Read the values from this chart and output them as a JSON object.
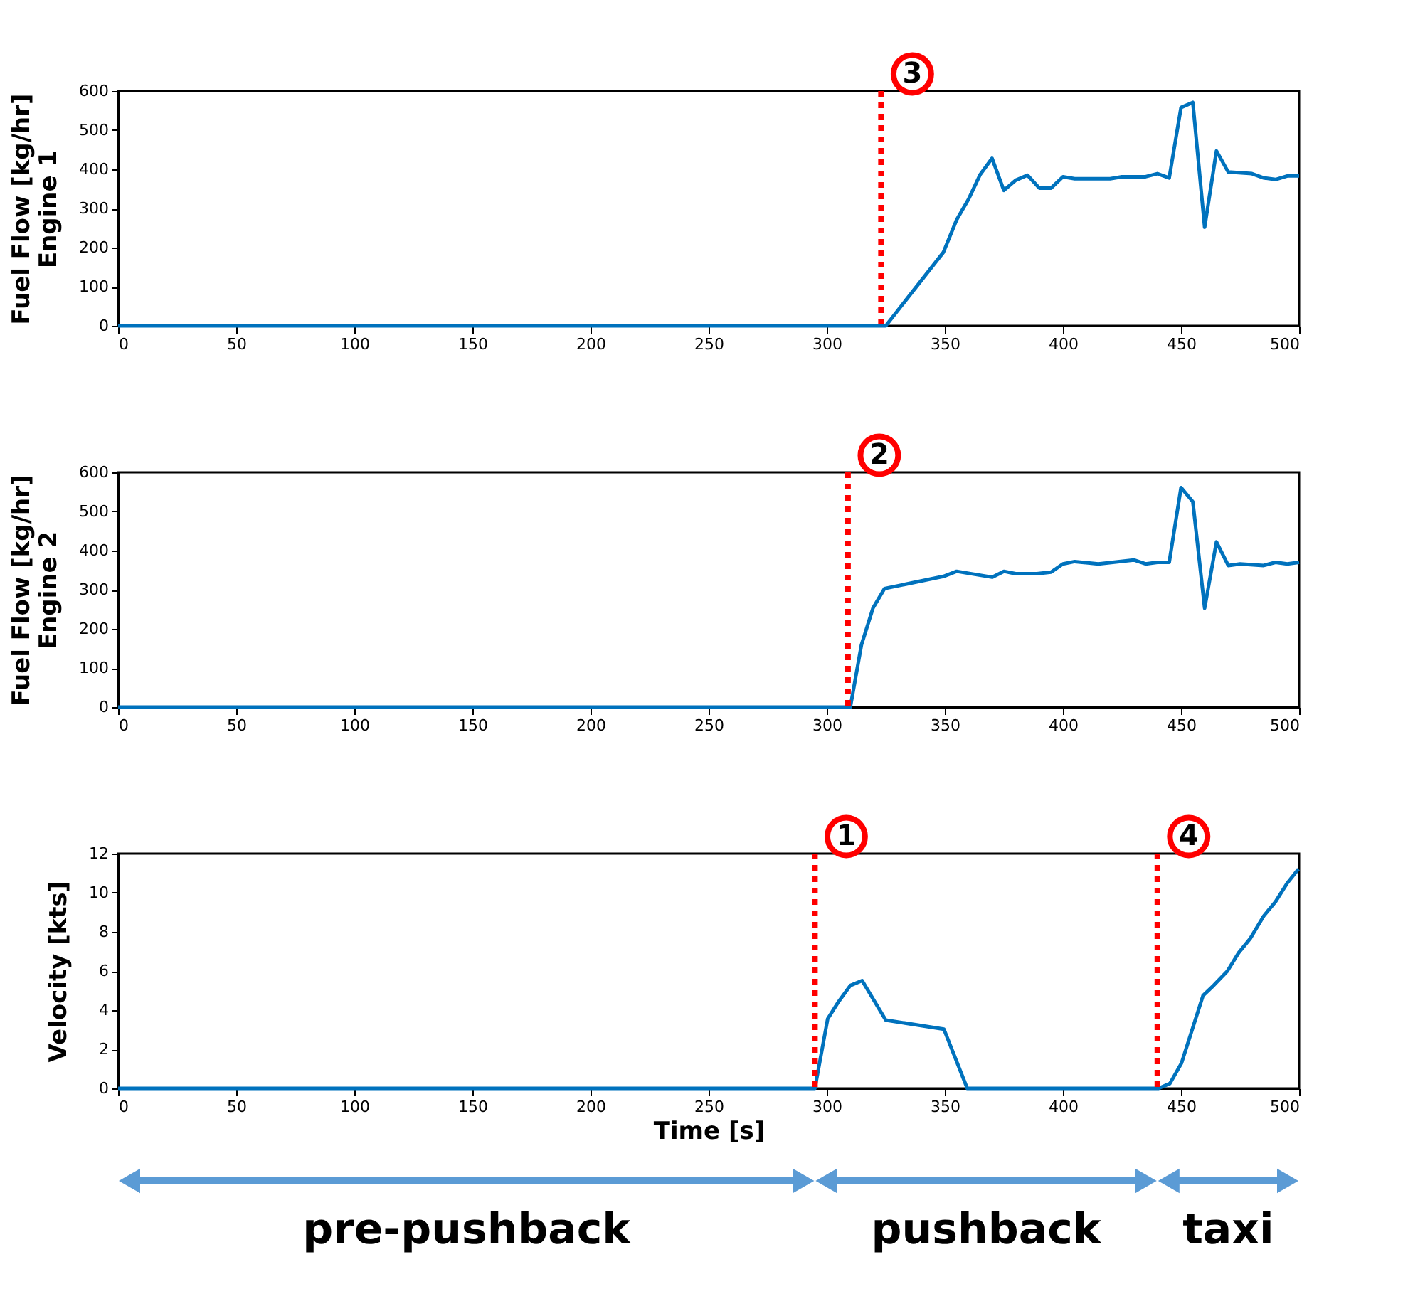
{
  "chart_data": [
    {
      "type": "line",
      "ylabel": "Fuel Flow [kg/hr]\nEngine 1",
      "x": [
        0,
        325,
        349.4,
        355,
        360,
        365,
        370,
        375,
        380,
        385,
        390,
        395,
        400,
        405,
        420,
        425,
        435,
        440,
        445,
        450,
        455,
        460,
        465,
        470,
        480,
        485,
        490,
        495,
        500
      ],
      "series": [
        {
          "color": "#0072bd",
          "values": [
            0,
            0,
            188,
            271,
            323,
            387,
            428,
            346,
            372,
            385,
            352,
            352,
            381,
            376,
            376,
            381,
            381,
            389,
            378,
            558,
            571,
            252,
            447,
            393,
            389,
            378,
            374,
            383,
            383
          ]
        }
      ],
      "xlim": [
        0,
        500
      ],
      "xticks": [
        0,
        50,
        100,
        150,
        200,
        250,
        300,
        350,
        400,
        450,
        500
      ],
      "ylim": [
        0,
        600
      ],
      "yticks": [
        0,
        100,
        200,
        300,
        400,
        500,
        600
      ],
      "ref_lines": [
        {
          "axis": "x",
          "value": 323,
          "color": "#ff0000",
          "line_style": "dotted"
        }
      ],
      "annotations": [
        {
          "text": "3",
          "x": 323,
          "y": 600
        }
      ],
      "marker": "none",
      "line_style": "solid",
      "grid": false
    },
    {
      "type": "line",
      "ylabel": "Fuel Flow [kg/hr]\nEngine 2",
      "x": [
        0,
        310,
        314.7,
        319.6,
        324.5,
        349.4,
        355,
        370,
        375,
        380,
        389,
        395,
        400,
        405,
        415,
        430,
        435,
        440,
        445,
        450,
        455,
        460,
        465,
        470,
        475,
        485,
        490,
        495,
        500
      ],
      "series": [
        {
          "color": "#0072bd",
          "values": [
            0,
            0,
            159,
            253,
            303,
            334,
            347,
            332,
            347,
            341,
            341,
            345,
            366,
            372,
            366,
            376,
            366,
            370,
            370,
            561,
            525,
            253,
            422,
            362,
            366,
            362,
            370,
            366,
            370
          ]
        }
      ],
      "xlim": [
        0,
        500
      ],
      "xticks": [
        0,
        50,
        100,
        150,
        200,
        250,
        300,
        350,
        400,
        450,
        500
      ],
      "ylim": [
        0,
        600
      ],
      "yticks": [
        0,
        100,
        200,
        300,
        400,
        500,
        600
      ],
      "ref_lines": [
        {
          "axis": "x",
          "value": 309,
          "color": "#ff0000",
          "line_style": "dotted"
        }
      ],
      "annotations": [
        {
          "text": "2",
          "x": 309,
          "y": 600
        }
      ],
      "marker": "none",
      "line_style": "solid",
      "grid": false
    },
    {
      "type": "line",
      "xlabel": "Time [s]",
      "ylabel": "Velocity [kts]",
      "x": [
        0,
        295,
        300.4,
        305,
        310,
        315,
        325,
        349.6,
        359.5,
        440.5,
        445.3,
        450.2,
        459.3,
        463.8,
        469.6,
        474.4,
        479.3,
        485,
        490,
        494.9,
        499.7
      ],
      "series": [
        {
          "color": "#0072bd",
          "values": [
            0,
            0,
            3.55,
            4.43,
            5.26,
            5.51,
            3.49,
            3.03,
            0,
            0,
            0.25,
            1.29,
            4.74,
            5.26,
            5.99,
            6.93,
            7.66,
            8.81,
            9.54,
            10.48,
            11.21
          ]
        }
      ],
      "xlim": [
        0,
        500
      ],
      "xticks": [
        0,
        50,
        100,
        150,
        200,
        250,
        300,
        350,
        400,
        450,
        500
      ],
      "ylim": [
        0,
        12
      ],
      "yticks": [
        0,
        2,
        4,
        6,
        8,
        10,
        12
      ],
      "ref_lines": [
        {
          "axis": "x",
          "value": 295,
          "color": "#ff0000",
          "line_style": "dotted"
        },
        {
          "axis": "x",
          "value": 440,
          "color": "#ff0000",
          "line_style": "dotted"
        }
      ],
      "annotations": [
        {
          "text": "1",
          "x": 295,
          "y": 12
        },
        {
          "text": "4",
          "x": 440,
          "y": 12
        },
        "pre-pushback",
        "pushback",
        "taxi"
      ],
      "marker": "none",
      "line_style": "solid",
      "grid": false
    }
  ]
}
